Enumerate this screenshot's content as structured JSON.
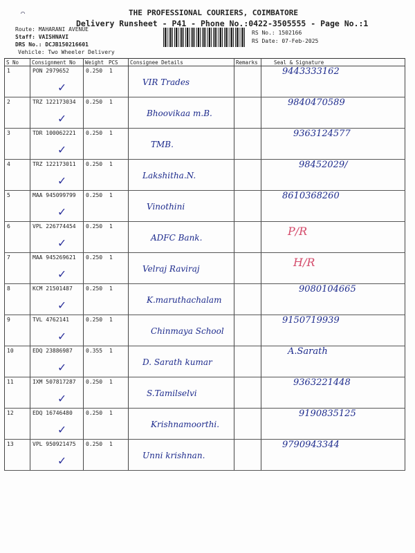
{
  "header": {
    "company": "THE PROFESSIONAL COURIERS, COIMBATORE",
    "subtitle": "Delivery Runsheet - P41 - Phone No.:0422-3505555 - Page No.:1",
    "route_label": "Route:",
    "route": "MAHARANI AVENUE",
    "staff_label": "Staff:",
    "staff": "VAISHNAVI",
    "drs_label": "DRS No.:",
    "drs": "DCJB150216601",
    "vehicle_label": "Vehicle:",
    "vehicle": "Two Wheeler Delivery",
    "rs_no_label": "RS No.:",
    "rs_no": "1502166",
    "rs_date_label": "RS Date:",
    "rs_date": "07-Feb-2025"
  },
  "columns": [
    "S No",
    "Consignment No",
    "Weight",
    "PCS",
    "Consignee Details",
    "Remarks",
    "Seal & Signature"
  ],
  "rows": [
    {
      "sno": "1",
      "cn": "PON 2979652",
      "wt": "0.250",
      "pcs": "1",
      "consignee": "VIR Trades",
      "sign": "9443333162"
    },
    {
      "sno": "2",
      "cn": "TRZ 122173034",
      "wt": "0.250",
      "pcs": "1",
      "consignee": "Bhoovikaa m.B.",
      "sign": "9840470589"
    },
    {
      "sno": "3",
      "cn": "TDR 100062221",
      "wt": "0.250",
      "pcs": "1",
      "consignee": "TMB.",
      "sign": "9363124577"
    },
    {
      "sno": "4",
      "cn": "TRZ 122173011",
      "wt": "0.250",
      "pcs": "1",
      "consignee": "Lakshitha.N.",
      "sign": "98452029/"
    },
    {
      "sno": "5",
      "cn": "MAA 945099799",
      "wt": "0.250",
      "pcs": "1",
      "consignee": "Vinothini",
      "sign": "8610368260"
    },
    {
      "sno": "6",
      "cn": "VPL 226774454",
      "wt": "0.250",
      "pcs": "1",
      "consignee": "ADFC Bank.",
      "sign": "P/R"
    },
    {
      "sno": "7",
      "cn": "MAA 945269621",
      "wt": "0.250",
      "pcs": "1",
      "consignee": "Velraj Raviraj",
      "sign": "H/R"
    },
    {
      "sno": "8",
      "cn": "KCM 21501487",
      "wt": "0.250",
      "pcs": "1",
      "consignee": "K.maruthachalam",
      "sign": "9080104665"
    },
    {
      "sno": "9",
      "cn": "TVL 4762141",
      "wt": "0.250",
      "pcs": "1",
      "consignee": "Chinmaya School",
      "sign": "9150719939"
    },
    {
      "sno": "10",
      "cn": "EDQ 23886987",
      "wt": "0.355",
      "pcs": "1",
      "consignee": "D. Sarath kumar",
      "sign": "A.Sarath"
    },
    {
      "sno": "11",
      "cn": "IXM 507817287",
      "wt": "0.250",
      "pcs": "1",
      "consignee": "S.Tamilselvi",
      "sign": "9363221448"
    },
    {
      "sno": "12",
      "cn": "EDQ 16746480",
      "wt": "0.250",
      "pcs": "1",
      "consignee": "Krishnamoorthi.",
      "sign": "9190835125"
    },
    {
      "sno": "13",
      "cn": "VPL 950921475",
      "wt": "0.250",
      "pcs": "1",
      "consignee": "Unni krishnan.",
      "sign": "9790943344"
    }
  ],
  "colors": {
    "ink": "#1c2a8c",
    "red_ink": "#d44a6a"
  }
}
